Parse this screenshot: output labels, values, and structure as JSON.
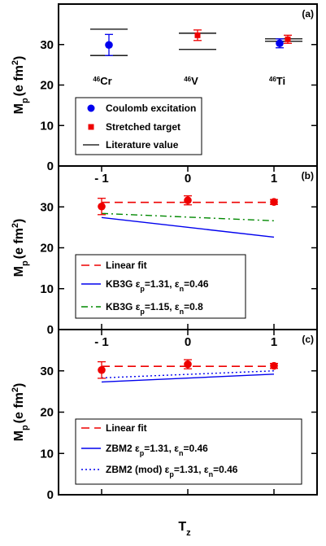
{
  "chart_data": [
    {
      "panel": "(a)",
      "type": "scatter",
      "ylabel": "M",
      "ylabel_sub": "p",
      "ylabel_units": "(e fm",
      "ylabel_sup": "2",
      "ylabel_close": ")",
      "ylim": [
        0,
        40
      ],
      "yticks": [
        "0",
        "10",
        "20",
        "30"
      ],
      "ytick_values": [
        0,
        10,
        20,
        30
      ],
      "categories": [
        {
          "mass": "46",
          "symbol": "Cr"
        },
        {
          "mass": "46",
          "symbol": "V"
        },
        {
          "mass": "46",
          "symbol": "Ti"
        }
      ],
      "series": [
        {
          "name": "Coulomb excitation",
          "marker": "circle",
          "color": "#0000ee",
          "points": [
            {
              "cat": 0,
              "y": 29.9,
              "err": 2.6
            },
            {
              "cat": 2,
              "y": 30.3,
              "err": 1.1
            }
          ]
        },
        {
          "name": "Stretched target",
          "marker": "square",
          "color": "#ee0000",
          "points": [
            {
              "cat": 1,
              "y": 32.3,
              "err": 1.3
            },
            {
              "cat": 2,
              "y": 31.3,
              "err": 1.0
            }
          ]
        },
        {
          "name": "Literature value",
          "marker": "line",
          "color": "#000000",
          "points": [
            {
              "cat": 0,
              "upper": 33.8,
              "lower": 27.3
            },
            {
              "cat": 1,
              "upper": 32.8,
              "lower": 28.8
            },
            {
              "cat": 2,
              "upper": 31.4,
              "lower": 30.8
            }
          ]
        }
      ],
      "legend": [
        "Coulomb excitation",
        "Stretched target",
        "Literature value"
      ],
      "legend_position": "bottom-left"
    },
    {
      "panel": "(b)",
      "type": "line",
      "ylabel": "M",
      "ylabel_sub": "p",
      "ylabel_units": "(e fm",
      "ylabel_sup": "2",
      "ylabel_close": ")",
      "ylim": [
        0,
        40
      ],
      "yticks": [
        "0",
        "10",
        "20",
        "30"
      ],
      "ytick_values": [
        0,
        10,
        20,
        30
      ],
      "xticks": [
        "- 1",
        "0",
        "1"
      ],
      "xtick_values": [
        -1,
        0,
        1
      ],
      "xlim": [
        -1.5,
        1.5
      ],
      "points": [
        {
          "x": -1,
          "y": 30.1,
          "err": 2.0
        },
        {
          "x": 0,
          "y": 31.6,
          "err": 1.1
        },
        {
          "x": 1,
          "y": 31.2,
          "err": 0.6
        }
      ],
      "lines": [
        {
          "name": "Linear fit",
          "style": "dashed",
          "color": "#ee0000",
          "x": [
            -1,
            1
          ],
          "y": [
            31.1,
            31.1
          ]
        },
        {
          "name": "KB3G",
          "eps": "ε",
          "eps_p": "p",
          "eq1": "=1.31, ",
          "eps_n": "n",
          "eq2": "=0.46",
          "style": "solid",
          "color": "#0000ee",
          "x": [
            -1,
            1
          ],
          "y": [
            27.4,
            22.6
          ]
        },
        {
          "name": "KB3G",
          "eps": "ε",
          "eps_p": "p",
          "eq1": "=1.15, ",
          "eps_n": "n",
          "eq2": "=0.8",
          "style": "dashdot",
          "color": "#008800",
          "x": [
            -1,
            1
          ],
          "y": [
            28.4,
            26.6
          ]
        }
      ],
      "legend_position": "bottom-left"
    },
    {
      "panel": "(c)",
      "type": "line",
      "ylabel": "M",
      "ylabel_sub": "p",
      "ylabel_units": "(e fm",
      "ylabel_sup": "2",
      "ylabel_close": ")",
      "xlabel": "T",
      "xlabel_sub": "z",
      "ylim": [
        0,
        40
      ],
      "yticks": [
        "0",
        "10",
        "20",
        "30"
      ],
      "ytick_values": [
        0,
        10,
        20,
        30
      ],
      "xticks": [
        "- 1",
        "0",
        "1"
      ],
      "xtick_values": [
        -1,
        0,
        1
      ],
      "xlim": [
        -1.5,
        1.5
      ],
      "points": [
        {
          "x": -1,
          "y": 30.2,
          "err": 2.0
        },
        {
          "x": 0,
          "y": 31.6,
          "err": 1.1
        },
        {
          "x": 1,
          "y": 31.2,
          "err": 0.6
        }
      ],
      "lines": [
        {
          "name": "Linear fit",
          "style": "dashed",
          "color": "#ee0000",
          "x": [
            -1,
            1
          ],
          "y": [
            31.1,
            31.1
          ]
        },
        {
          "name": "ZBM2 ",
          "eps": "ε",
          "eps_p": "p",
          "eq1": "=1.31, ",
          "eps_n": "n",
          "eq2": "=0.46",
          "style": "solid",
          "color": "#0000ee",
          "x": [
            -1,
            1
          ],
          "y": [
            27.3,
            29.2
          ]
        },
        {
          "name": "ZBM2 (mod) ",
          "eps": "ε",
          "eps_p": "p",
          "eq1": "=1.31, ",
          "eps_n": "n",
          "eq2": "=0.46",
          "style": "dotted",
          "color": "#0000ee",
          "x": [
            -1,
            1
          ],
          "y": [
            28.3,
            30.0
          ]
        }
      ],
      "legend_position": "bottom-left"
    }
  ]
}
